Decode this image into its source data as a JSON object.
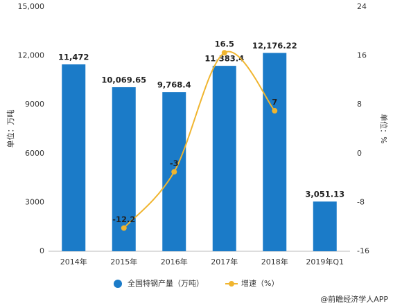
{
  "chart_data": {
    "type": "bar",
    "categories": [
      "2014年",
      "2015年",
      "2016年",
      "2017年",
      "2018年",
      "2019年Q1"
    ],
    "series": [
      {
        "name": "全国特钢产量（万吨）",
        "type": "bar",
        "color": "#1b7bc8",
        "values": [
          11472,
          10069.65,
          9768.4,
          11383.4,
          12176.22,
          3051.13
        ],
        "value_labels": [
          "11,472",
          "10,069.65",
          "9,768.4",
          "11,383.4",
          "12,176.22",
          "3,051.13"
        ]
      },
      {
        "name": "增速（%）",
        "type": "line",
        "axis": "y2",
        "color": "#f0b52f",
        "values": [
          null,
          -12.2,
          -3,
          16.5,
          7,
          null
        ]
      }
    ],
    "ylabel": "单位：万吨",
    "y2label": "单位：%",
    "ylim": [
      0,
      15000
    ],
    "yticks": [
      0,
      3000,
      6000,
      9000,
      {
        "value": 12000,
        "label": "12,000"
      },
      {
        "value": 15000,
        "label": "15,000"
      }
    ],
    "y2lim": [
      -16,
      24
    ],
    "y2ticks": [
      -16,
      -8,
      0,
      8,
      16,
      24
    ],
    "grid": false,
    "legend": "bottom",
    "source": "@前瞻经济学人APP"
  }
}
